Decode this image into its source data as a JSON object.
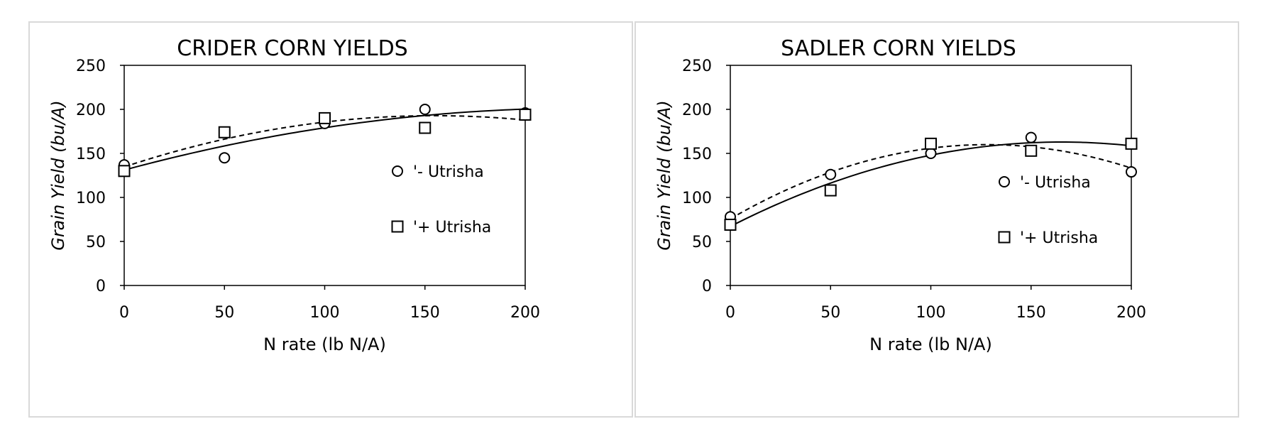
{
  "chart_data": [
    {
      "type": "scatter",
      "title": "CRIDER CORN YIELDS",
      "xlabel": "N rate (lb N/A)",
      "ylabel": "Grain Yield (bu/A)",
      "xlim": [
        0,
        200
      ],
      "ylim": [
        0,
        250
      ],
      "xticks": [
        "0",
        "50",
        "100",
        "150",
        "200"
      ],
      "yticks": [
        "0",
        "50",
        "100",
        "150",
        "200",
        "250"
      ],
      "grid": false,
      "legend_position": "right",
      "series": [
        {
          "name": "'- Utrisha",
          "marker": "circle",
          "line_style": "solid",
          "x": [
            0,
            50,
            100,
            150,
            200
          ],
          "y": [
            137,
            145,
            184,
            200,
            196
          ]
        },
        {
          "name": "'+ Utrisha",
          "marker": "square",
          "line_style": "dashed",
          "x": [
            0,
            50,
            100,
            150,
            200
          ],
          "y": [
            130,
            174,
            190,
            179,
            194
          ]
        }
      ]
    },
    {
      "type": "scatter",
      "title": "SADLER CORN YIELDS",
      "xlabel": "N rate (lb N/A)",
      "ylabel": "Grain Yield (bu/A)",
      "xlim": [
        0,
        200
      ],
      "ylim": [
        0,
        250
      ],
      "xticks": [
        "0",
        "50",
        "100",
        "150",
        "200"
      ],
      "yticks": [
        "0",
        "50",
        "100",
        "150",
        "200",
        "250"
      ],
      "grid": false,
      "legend_position": "right",
      "series": [
        {
          "name": "'- Utrisha",
          "marker": "circle",
          "line_style": "dashed",
          "x": [
            0,
            50,
            100,
            150,
            200
          ],
          "y": [
            78,
            126,
            150,
            168,
            129
          ]
        },
        {
          "name": "'+ Utrisha",
          "marker": "square",
          "line_style": "solid",
          "x": [
            0,
            50,
            100,
            150,
            200
          ],
          "y": [
            69,
            108,
            161,
            153,
            161
          ]
        }
      ]
    }
  ]
}
